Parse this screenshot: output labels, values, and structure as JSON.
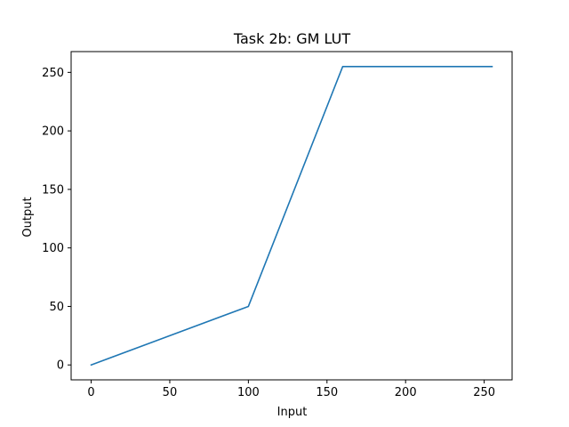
{
  "chart_data": {
    "type": "line",
    "title": "Task 2b: GM LUT",
    "xlabel": "Input",
    "ylabel": "Output",
    "xlim": [
      -12.75,
      267.75
    ],
    "ylim": [
      -12.75,
      267.75
    ],
    "xticks": [
      0,
      50,
      100,
      150,
      200,
      250
    ],
    "yticks": [
      0,
      50,
      100,
      150,
      200,
      250
    ],
    "grid": false,
    "series": [
      {
        "color": "#1f77b4",
        "x": [
          0,
          100,
          160,
          255
        ],
        "y": [
          0,
          50,
          255,
          255
        ]
      }
    ]
  }
}
